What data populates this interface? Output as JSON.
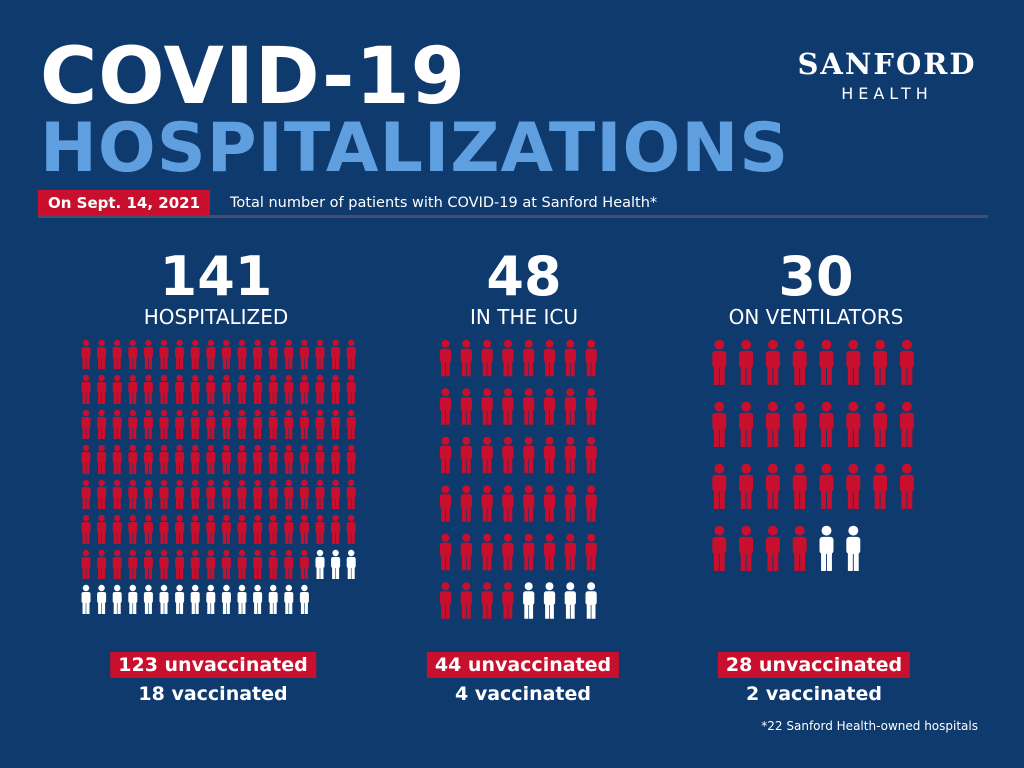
{
  "header": {
    "title_line1": "COVID-19",
    "title_line2": "HOSPITALIZATIONS",
    "date_badge": "On Sept. 14, 2021",
    "subtitle": "Total number of patients with COVID-19 at Sanford Health*"
  },
  "logo": {
    "main": "SANFORD",
    "sub": "HEALTH"
  },
  "colors": {
    "background": "#0f3a6e",
    "title_light": "#5f9fe0",
    "unvaccinated": "#c8102e",
    "vaccinated": "#ffffff"
  },
  "chart_data": {
    "type": "pictograph",
    "title": "",
    "groups": [
      {
        "total": "141",
        "label": "HOSPITALIZED",
        "unvaccinated": 123,
        "vaccinated": 18,
        "unvaccinated_text": "123 unvaccinated",
        "vaccinated_text": "18 vaccinated"
      },
      {
        "total": "48",
        "label": "IN THE ICU",
        "unvaccinated": 44,
        "vaccinated": 4,
        "unvaccinated_text": "44 unvaccinated",
        "vaccinated_text": "4 vaccinated"
      },
      {
        "total": "30",
        "label": "ON VENTILATORS",
        "unvaccinated": 28,
        "vaccinated": 2,
        "unvaccinated_text": "28 unvaccinated",
        "vaccinated_text": "2 vaccinated"
      }
    ]
  },
  "footnote": "*22 Sanford Health-owned hospitals"
}
